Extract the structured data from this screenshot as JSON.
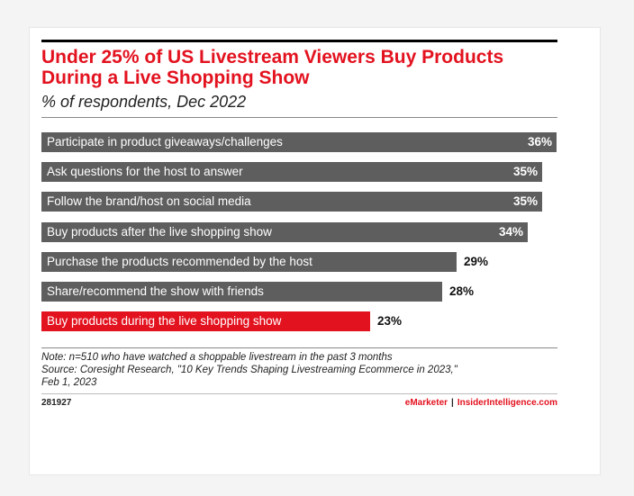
{
  "chart_data": {
    "type": "bar",
    "orientation": "horizontal",
    "title": "Under 25% of US Livestream Viewers Buy Products During a Live Shopping Show",
    "subtitle": "% of respondents, Dec 2022",
    "categories": [
      "Participate in product giveaways/challenges",
      "Ask questions for the host to answer",
      "Follow the brand/host on social media",
      "Buy products after the live shopping show",
      "Purchase the products recommended by the host",
      "Share/recommend the show with friends",
      "Buy products during the live shopping show"
    ],
    "values": [
      36,
      35,
      35,
      34,
      29,
      28,
      23
    ],
    "value_labels": [
      "36%",
      "35%",
      "35%",
      "34%",
      "29%",
      "28%",
      "23%"
    ],
    "highlight_index": 6,
    "colors": {
      "bar": "#5e5e5e",
      "highlight": "#e3121f",
      "title": "#e3121f"
    },
    "xlim": [
      0,
      36
    ],
    "grid": false
  },
  "note": {
    "line1": "Note: n=510 who have watched a shoppable livestream in the past 3 months",
    "line2": "Source: Coresight Research, \"10 Key Trends Shaping Livestreaming Ecommerce in 2023,\"",
    "line3": "Feb 1, 2023"
  },
  "footer": {
    "chart_id": "281927",
    "brand_emarketer": "eMarketer",
    "brand_separator": "|",
    "brand_insider": "InsiderIntelligence.com"
  }
}
